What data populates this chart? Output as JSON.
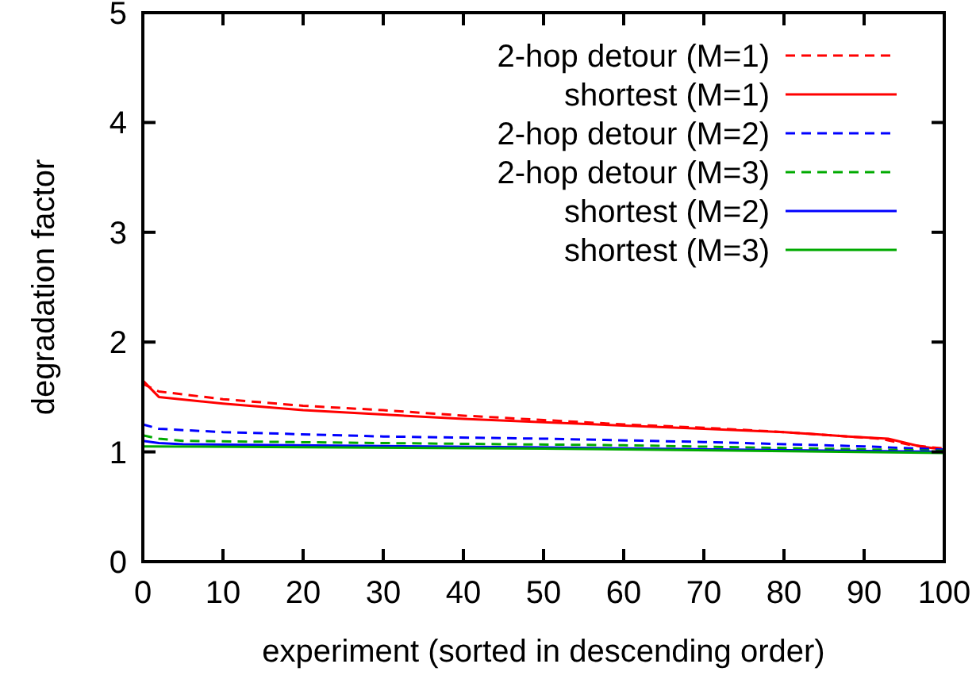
{
  "chart_data": {
    "type": "line",
    "xlabel": "experiment (sorted in descending order)",
    "ylabel": "degradation factor",
    "xlim": [
      0,
      100
    ],
    "ylim": [
      0,
      5
    ],
    "xticks": [
      0,
      10,
      20,
      30,
      40,
      50,
      60,
      70,
      80,
      90,
      100
    ],
    "yticks": [
      0,
      1,
      2,
      3,
      4,
      5
    ],
    "legend": "top right",
    "grid": false,
    "series": [
      {
        "name": "2-hop detour (M=1)",
        "color": "#ff0000",
        "line_style": "dashed",
        "x": [
          0,
          2,
          10,
          20,
          30,
          40,
          50,
          60,
          70,
          80,
          88,
          92,
          96,
          100
        ],
        "values": [
          1.62,
          1.55,
          1.48,
          1.42,
          1.38,
          1.33,
          1.29,
          1.25,
          1.22,
          1.18,
          1.14,
          1.12,
          1.06,
          1.03
        ]
      },
      {
        "name": "shortest (M=1)",
        "color": "#ff0000",
        "line_style": "solid",
        "x": [
          0,
          2,
          10,
          20,
          30,
          40,
          50,
          60,
          70,
          80,
          88,
          93,
          97,
          100
        ],
        "values": [
          1.65,
          1.5,
          1.44,
          1.38,
          1.34,
          1.3,
          1.27,
          1.24,
          1.21,
          1.18,
          1.14,
          1.12,
          1.05,
          1.02
        ]
      },
      {
        "name": "2-hop detour (M=2)",
        "color": "#0000ff",
        "line_style": "dashed",
        "x": [
          0,
          2,
          10,
          30,
          50,
          70,
          90,
          100
        ],
        "values": [
          1.25,
          1.21,
          1.18,
          1.14,
          1.12,
          1.09,
          1.05,
          1.02
        ]
      },
      {
        "name": "2-hop detour (M=3)",
        "color": "#00aa00",
        "line_style": "dashed",
        "x": [
          0,
          2,
          5,
          30,
          60,
          100
        ],
        "values": [
          1.15,
          1.12,
          1.1,
          1.08,
          1.06,
          1.01
        ]
      },
      {
        "name": "shortest (M=2)",
        "color": "#0000ff",
        "line_style": "solid",
        "x": [
          0,
          2,
          5,
          50,
          100
        ],
        "values": [
          1.1,
          1.08,
          1.07,
          1.04,
          1.0
        ]
      },
      {
        "name": "shortest (M=3)",
        "color": "#00aa00",
        "line_style": "solid",
        "x": [
          0,
          50,
          100
        ],
        "values": [
          1.05,
          1.03,
          0.99
        ]
      }
    ]
  }
}
